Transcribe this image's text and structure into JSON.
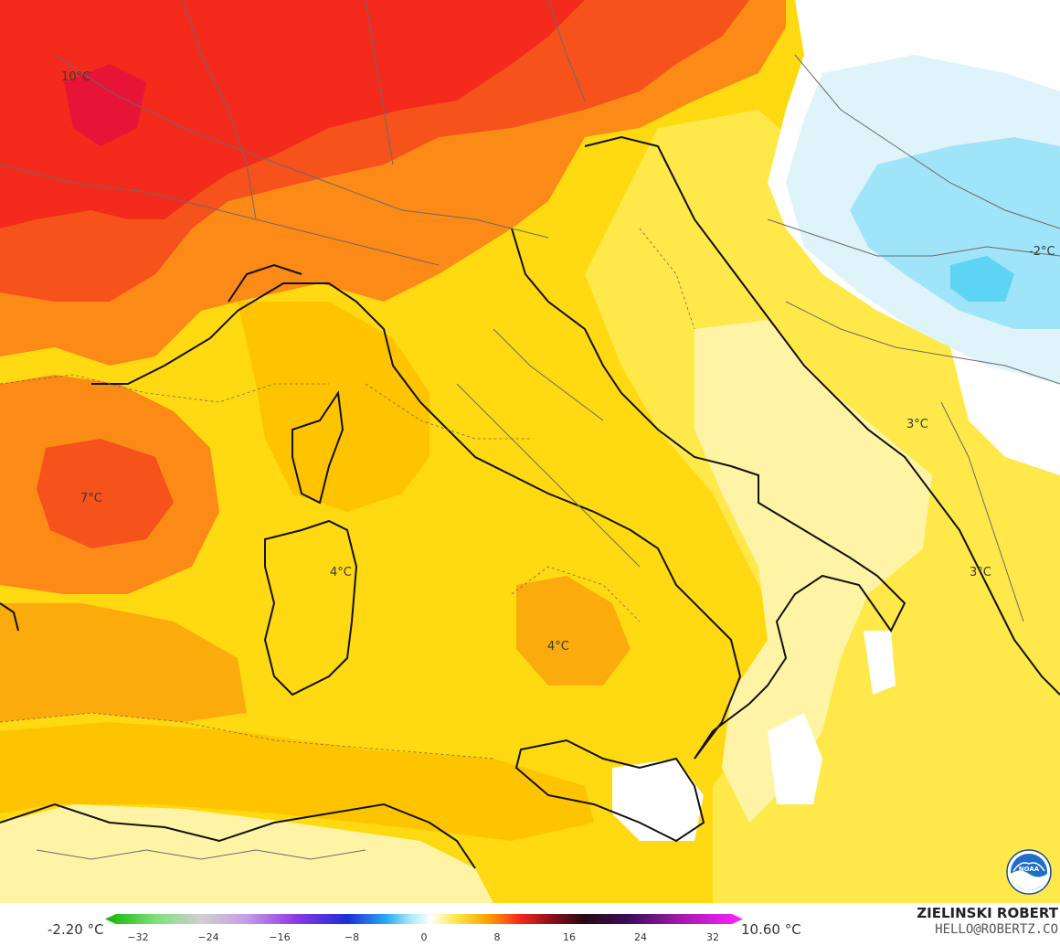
{
  "map": {
    "labels": [
      {
        "id": "label-10c",
        "text": "10°C"
      },
      {
        "id": "label-7c",
        "text": "7°C"
      },
      {
        "id": "label-4c-sardinia",
        "text": "4°C"
      },
      {
        "id": "label-4c-sea",
        "text": "4°C"
      },
      {
        "id": "label-minus2c",
        "text": "-2°C"
      },
      {
        "id": "label-3c-adriatic",
        "text": "3°C"
      },
      {
        "id": "label-3c-greece",
        "text": "3°C"
      }
    ],
    "colors": {
      "red": "#f42a1c",
      "red_orange": "#f5521c",
      "orange": "#fb8a16",
      "light_orange": "#fcab0d",
      "gold": "#ffc400",
      "yellow": "#ffd912",
      "light_yellow": "#ffe84a",
      "pale_yellow": "#fff4a6",
      "white": "#ffffff",
      "ice": "#dff3fb",
      "cyan": "#9fe4f8",
      "deep_cyan": "#5dd4f4"
    }
  },
  "legend": {
    "min_value": "-2.20 °C",
    "max_value": "10.60 °C",
    "ticks": [
      "−32",
      "−24",
      "−16",
      "−8",
      "0",
      "8",
      "16",
      "24",
      "32"
    ]
  },
  "branding": {
    "name": "ZIELINSKI ROBERT",
    "email": "HELLO@ROBERTZ.CO",
    "logo": "noaa-logo",
    "logo_text": "NOAA"
  }
}
